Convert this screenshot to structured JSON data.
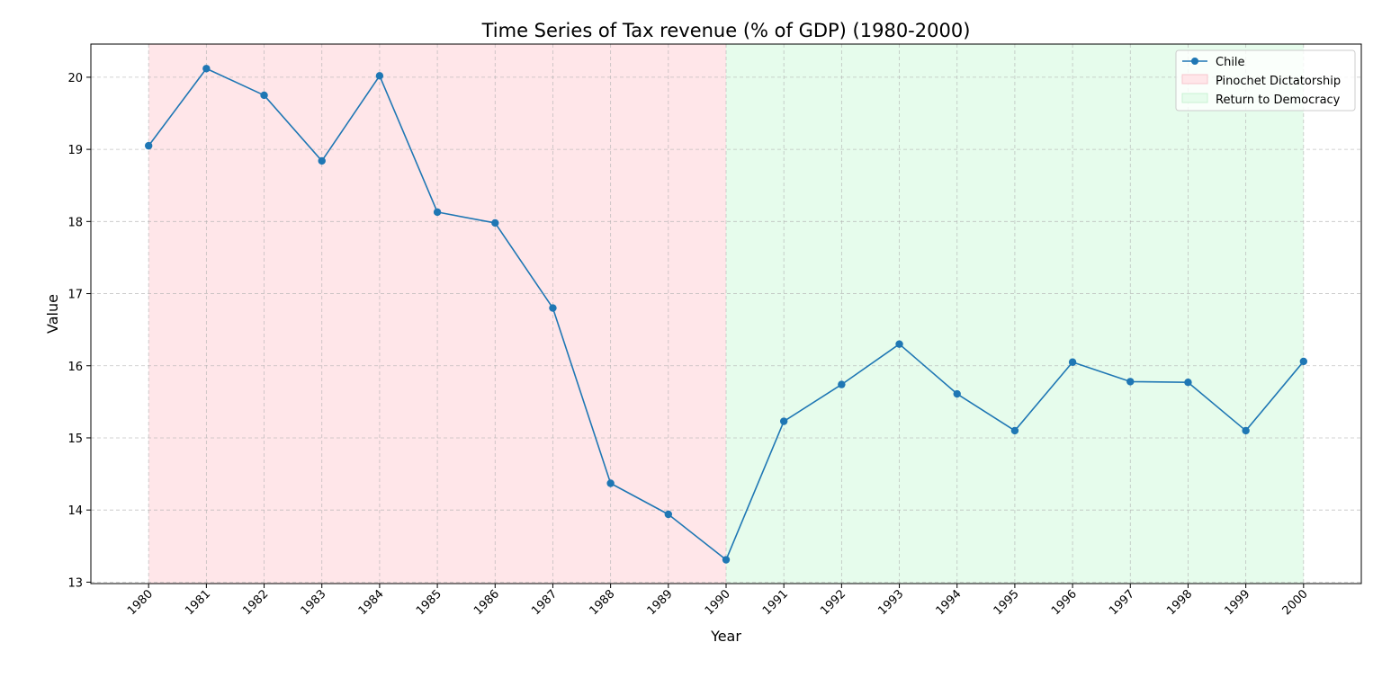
{
  "chart_data": {
    "type": "line",
    "title": "Time Series of Tax revenue (% of GDP) (1980-2000)",
    "xlabel": "Year",
    "ylabel": "Value",
    "x": [
      1980,
      1981,
      1982,
      1983,
      1984,
      1985,
      1986,
      1987,
      1988,
      1989,
      1990,
      1991,
      1992,
      1993,
      1994,
      1995,
      1996,
      1997,
      1998,
      1999,
      2000
    ],
    "xlim": [
      1979,
      2001
    ],
    "ylim": [
      12.98,
      20.46
    ],
    "yticks": [
      13,
      14,
      15,
      16,
      17,
      18,
      19,
      20
    ],
    "grid": true,
    "legend_position": "top-right",
    "series": [
      {
        "name": "Chile",
        "color": "#1f77b4",
        "marker": "circle",
        "values": [
          19.05,
          20.12,
          19.75,
          18.84,
          20.02,
          18.13,
          17.98,
          16.8,
          14.37,
          13.94,
          13.31,
          15.23,
          15.74,
          16.3,
          15.61,
          15.1,
          16.05,
          15.78,
          15.77,
          15.1,
          16.06
        ]
      }
    ],
    "shaded_regions": [
      {
        "name": "Pinochet Dictatorship",
        "x_start": 1980,
        "x_end": 1990,
        "color": "#ffe6e9"
      },
      {
        "name": "Return to Democracy",
        "x_start": 1990,
        "x_end": 2000,
        "color": "#e6fcec"
      }
    ]
  }
}
